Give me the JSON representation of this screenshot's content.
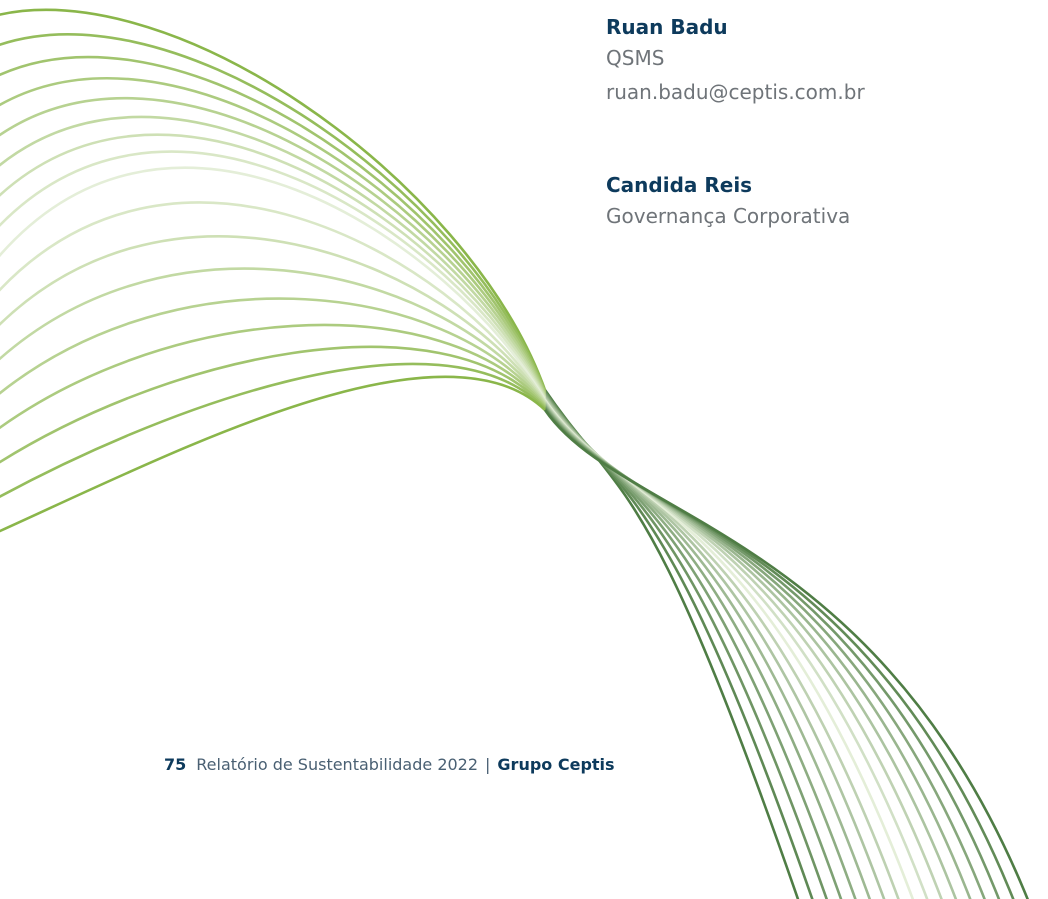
{
  "contacts": [
    {
      "name": "Ruan Badu",
      "department": "QSMS",
      "email": "ruan.badu@ceptis.com.br"
    },
    {
      "name": "Candida Reis",
      "department": "Governança Corporativa"
    }
  ],
  "footer": {
    "page_number": "75",
    "report_title": "Relatório de Sustentabilidade 2022",
    "separator": "|",
    "company": "Grupo Ceptis"
  },
  "colors": {
    "wave_light_green": "#8ab64a",
    "wave_pale": "#e4eed8",
    "wave_dark_green": "#4f7d45",
    "name_navy": "#0d3a5c",
    "body_gray": "#6f7479"
  },
  "decoration": "green-wave-lines"
}
